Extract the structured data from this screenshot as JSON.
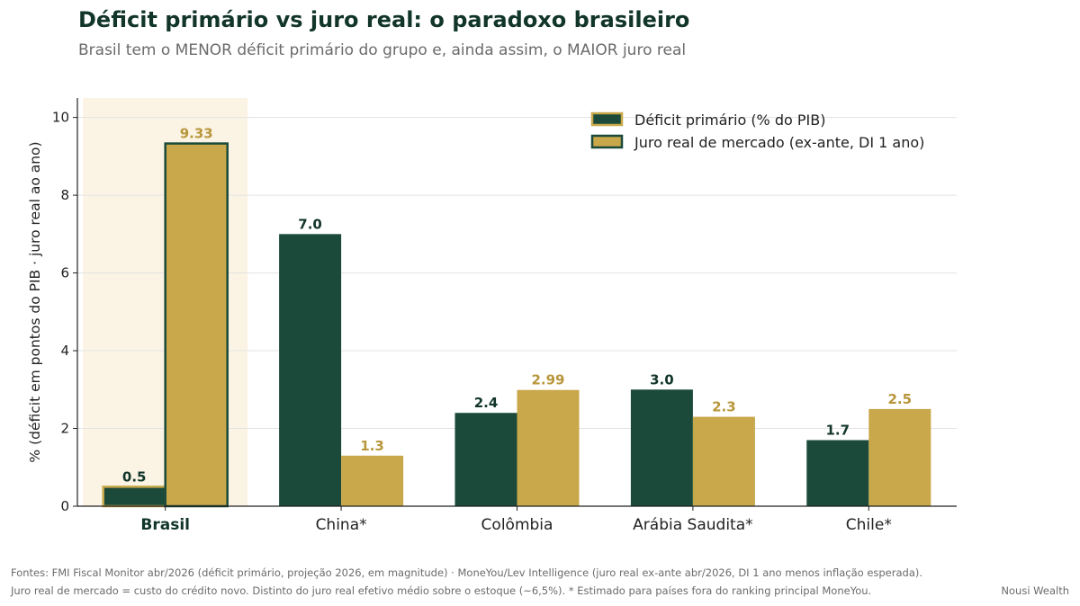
{
  "header": {
    "title": "Déficit primário vs juro real: o paradoxo brasileiro",
    "subtitle": "Brasil tem o MENOR déficit primário do grupo e, ainda assim, o MAIOR juro real"
  },
  "chart_data": {
    "type": "bar",
    "categories": [
      "Brasil",
      "China*",
      "Colômbia",
      "Arábia Saudita*",
      "Chile*"
    ],
    "highlight_category": "Brasil",
    "series": [
      {
        "name": "Déficit primário (% do PIB)",
        "color": "#1b4a3a",
        "values": [
          0.5,
          7.0,
          2.4,
          3.0,
          1.7
        ],
        "labels": [
          "0.5",
          "7.0",
          "2.4",
          "3.0",
          "1.7"
        ]
      },
      {
        "name": "Juro real de mercado (ex-ante, DI 1 ano)",
        "color": "#c8a84b",
        "values": [
          9.33,
          1.3,
          2.99,
          2.3,
          2.5
        ],
        "labels": [
          "9.33",
          "1.3",
          "2.99",
          "2.3",
          "2.5"
        ]
      }
    ],
    "ylabel": "% (déficit em pontos do PIB · juro real ao ano)",
    "xlabel": "",
    "ylim": [
      0,
      10.5
    ],
    "yticks": [
      0,
      2,
      4,
      6,
      8,
      10
    ],
    "grid": true,
    "legend": "top-right",
    "highlight_fill": "#fbf4e4",
    "label_colors": {
      "deficit": "#12352a",
      "juro": "#b8963c"
    }
  },
  "footer": {
    "line1": "Fontes: FMI Fiscal Monitor abr/2026 (déficit primário, projeção 2026, em magnitude)  ·  MoneYou/Lev Intelligence (juro real ex-ante abr/2026, DI 1 ano menos inflação esperada).",
    "line2": "Juro real de mercado = custo do crédito novo. Distinto do juro real efetivo médio sobre o estoque (~6,5%).   * Estimado para países fora do ranking principal MoneYou.",
    "brand": "Nousi Wealth"
  }
}
